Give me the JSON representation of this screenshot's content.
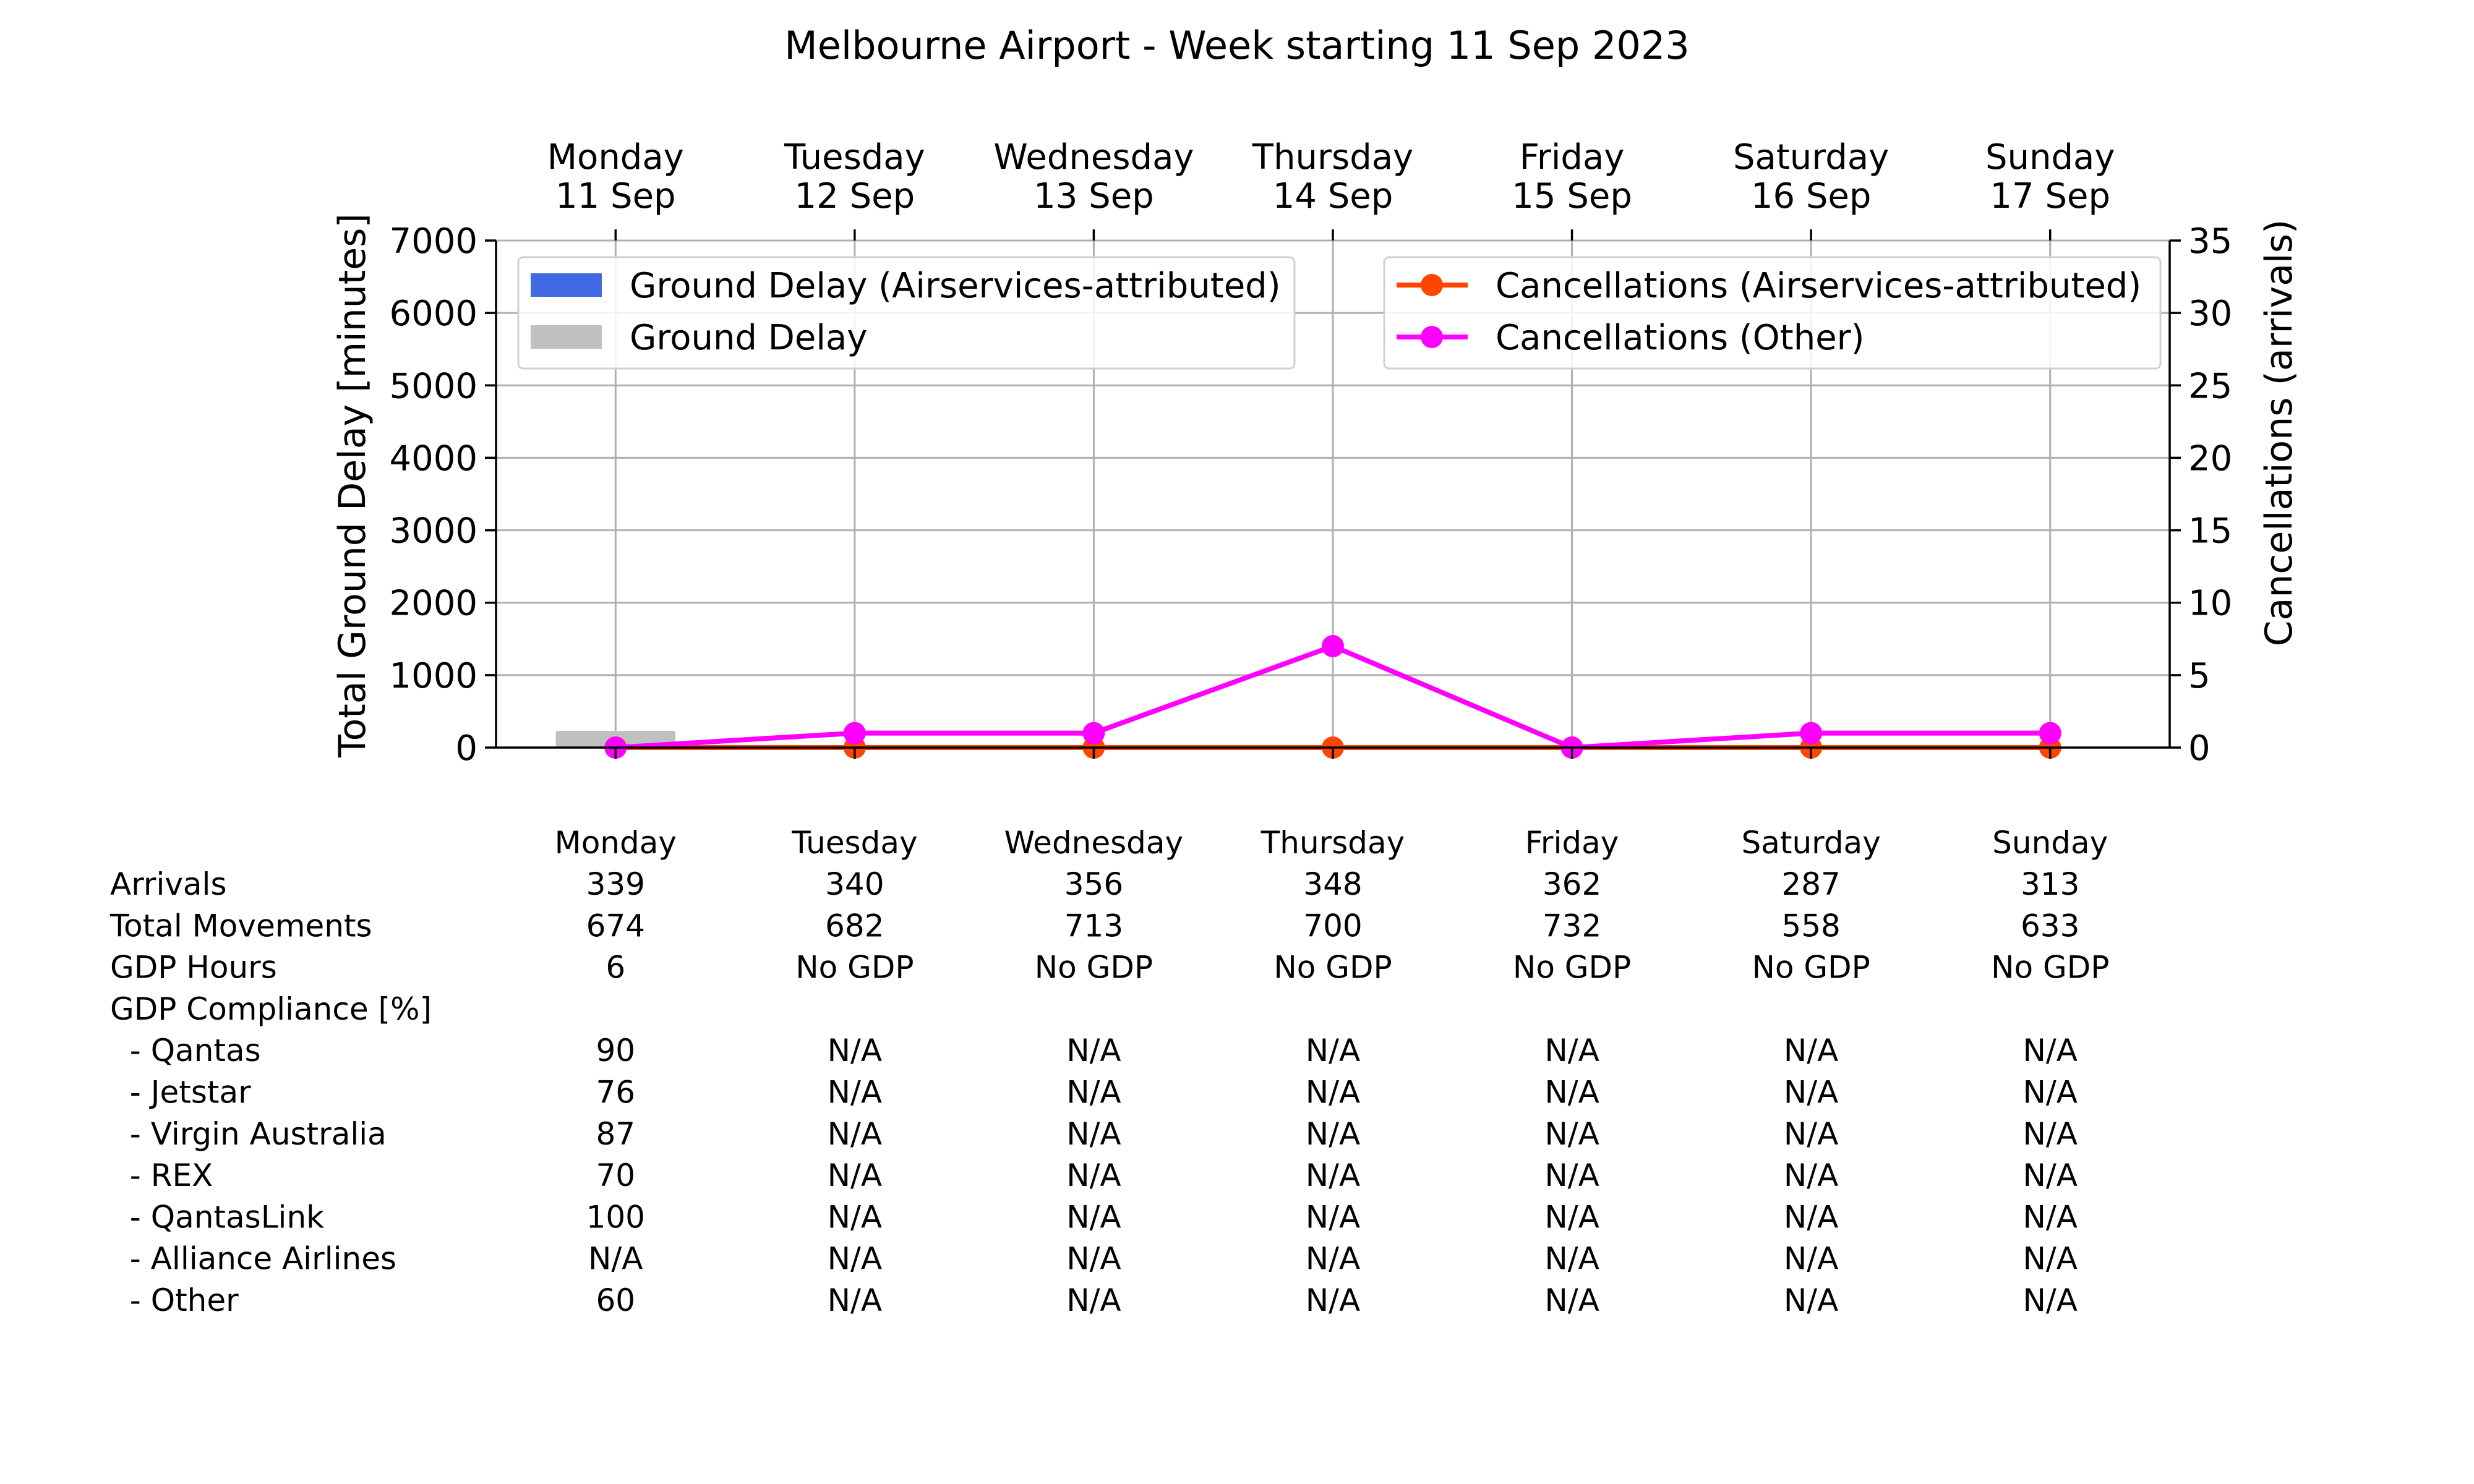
{
  "chart_data": {
    "type": "bar",
    "title": "Melbourne Airport - Week starting 11 Sep 2023",
    "days": [
      {
        "name": "Monday",
        "date": "11 Sep"
      },
      {
        "name": "Tuesday",
        "date": "12 Sep"
      },
      {
        "name": "Wednesday",
        "date": "13 Sep"
      },
      {
        "name": "Thursday",
        "date": "14 Sep"
      },
      {
        "name": "Friday",
        "date": "15 Sep"
      },
      {
        "name": "Saturday",
        "date": "16 Sep"
      },
      {
        "name": "Sunday",
        "date": "17 Sep"
      }
    ],
    "ylabel_left": "Total Ground Delay [minutes]",
    "ylabel_right": "Cancellations (arrivals)",
    "ylim_left": [
      0,
      7000
    ],
    "ylim_right": [
      0,
      35
    ],
    "yticks_left": [
      0,
      1000,
      2000,
      3000,
      4000,
      5000,
      6000,
      7000
    ],
    "yticks_right": [
      0,
      5,
      10,
      15,
      20,
      25,
      30,
      35
    ],
    "grid": true,
    "bar_series": [
      {
        "name": "Ground Delay (Airservices-attributed)",
        "color": "#4169e1",
        "values": [
          0,
          0,
          0,
          0,
          0,
          0,
          0
        ]
      },
      {
        "name": "Ground Delay",
        "color": "#c0c0c0",
        "values": [
          230,
          0,
          0,
          0,
          0,
          0,
          0
        ]
      }
    ],
    "line_series": [
      {
        "name": "Cancellations (Airservices-attributed)",
        "color": "#ff4500",
        "values": [
          0,
          0,
          0,
          0,
          0,
          0,
          0
        ]
      },
      {
        "name": "Cancellations (Other)",
        "color": "#ff00ff",
        "values": [
          0,
          1,
          1,
          7,
          0,
          1,
          1
        ]
      }
    ],
    "legend_bars_position": "upper left",
    "legend_lines_position": "upper right"
  },
  "table": {
    "headers": [
      "Monday",
      "Tuesday",
      "Wednesday",
      "Thursday",
      "Friday",
      "Saturday",
      "Sunday"
    ],
    "rows": [
      {
        "label": "Arrivals",
        "values": [
          "339",
          "340",
          "356",
          "348",
          "362",
          "287",
          "313"
        ]
      },
      {
        "label": "Total Movements",
        "values": [
          "674",
          "682",
          "713",
          "700",
          "732",
          "558",
          "633"
        ]
      },
      {
        "label": "GDP Hours",
        "values": [
          "6",
          "No GDP",
          "No GDP",
          "No GDP",
          "No GDP",
          "No GDP",
          "No GDP"
        ]
      },
      {
        "label": "GDP Compliance [%]",
        "values": [
          "",
          "",
          "",
          "",
          "",
          "",
          ""
        ]
      },
      {
        "label": "  - Qantas",
        "values": [
          "90",
          "N/A",
          "N/A",
          "N/A",
          "N/A",
          "N/A",
          "N/A"
        ]
      },
      {
        "label": "  - Jetstar",
        "values": [
          "76",
          "N/A",
          "N/A",
          "N/A",
          "N/A",
          "N/A",
          "N/A"
        ]
      },
      {
        "label": "  - Virgin Australia",
        "values": [
          "87",
          "N/A",
          "N/A",
          "N/A",
          "N/A",
          "N/A",
          "N/A"
        ]
      },
      {
        "label": "  - REX",
        "values": [
          "70",
          "N/A",
          "N/A",
          "N/A",
          "N/A",
          "N/A",
          "N/A"
        ]
      },
      {
        "label": "  - QantasLink",
        "values": [
          "100",
          "N/A",
          "N/A",
          "N/A",
          "N/A",
          "N/A",
          "N/A"
        ]
      },
      {
        "label": "  - Alliance Airlines",
        "values": [
          "N/A",
          "N/A",
          "N/A",
          "N/A",
          "N/A",
          "N/A",
          "N/A"
        ]
      },
      {
        "label": "  - Other",
        "values": [
          "60",
          "N/A",
          "N/A",
          "N/A",
          "N/A",
          "N/A",
          "N/A"
        ]
      }
    ]
  }
}
